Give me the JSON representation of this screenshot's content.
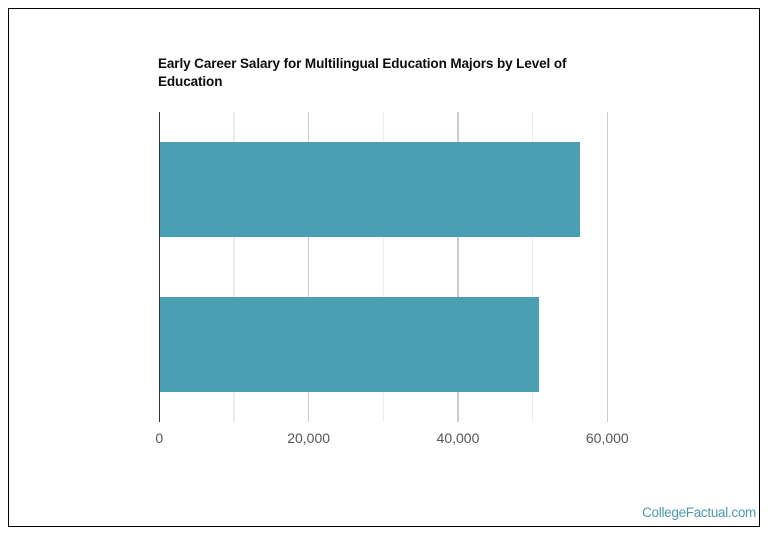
{
  "chart": {
    "title": "Early Career Salary for Multilingual Education Majors by Level of Education",
    "title_color": "#0c0c0c",
    "bar_color": "#4aa0b2",
    "baseline_color": "#333333",
    "gridline_color": "#cccccc",
    "minor_gridline_color": "#ebebeb",
    "tick_label_color": "#565656",
    "frame_border_color": "#000000",
    "background_color": "#ffffff"
  },
  "chart_data": {
    "type": "bar",
    "orientation": "horizontal",
    "title": "Early Career Salary for Multilingual Education Majors by Level of Education",
    "categories": [
      "",
      ""
    ],
    "series": [
      {
        "name": "Early Career Salary",
        "values": [
          56300,
          50800
        ]
      }
    ],
    "xlabel": "",
    "ylabel": "",
    "xlim": [
      0,
      60000
    ],
    "x_ticks": [
      {
        "value": 0,
        "label": "0"
      },
      {
        "value": 20000,
        "label": "20,000"
      },
      {
        "value": 40000,
        "label": "40,000"
      },
      {
        "value": 60000,
        "label": "60,000"
      }
    ],
    "x_minor_ticks": [
      10000,
      30000,
      50000
    ],
    "grid": true,
    "legend": "none"
  },
  "footer": {
    "brand": "CollegeFactual.com"
  }
}
